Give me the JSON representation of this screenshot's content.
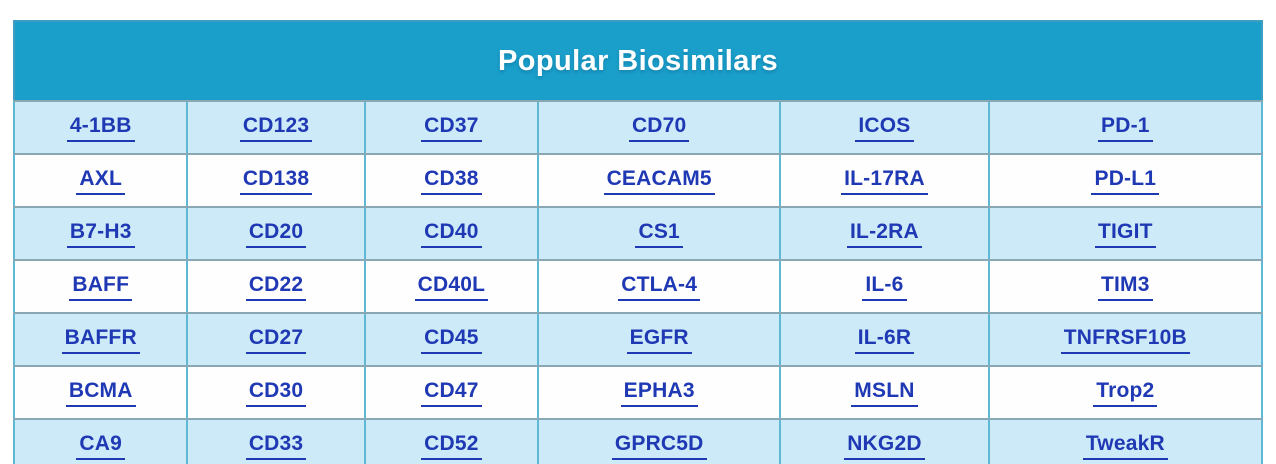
{
  "table": {
    "title": "Popular Biosimilars",
    "column_count": 6,
    "rows": [
      [
        "4-1BB",
        "CD123",
        "CD37",
        "CD70",
        "ICOS",
        "PD-1"
      ],
      [
        "AXL",
        "CD138",
        "CD38",
        "CEACAM5",
        "IL-17RA",
        "PD-L1"
      ],
      [
        "B7-H3",
        "CD20",
        "CD40",
        "CS1",
        "IL-2RA",
        "TIGIT"
      ],
      [
        "BAFF",
        "CD22",
        "CD40L",
        "CTLA-4",
        "IL-6",
        "TIM3"
      ],
      [
        "BAFFR",
        "CD27",
        "CD45",
        "EGFR",
        "IL-6R",
        "TNFRSF10B"
      ],
      [
        "BCMA",
        "CD30",
        "CD47",
        "EPHA3",
        "MSLN",
        "Trop2"
      ],
      [
        "CA9",
        "CD33",
        "CD52",
        "GPRC5D",
        "NKG2D",
        "TweakR"
      ]
    ],
    "colors": {
      "header_bg": "#1A9ECA",
      "header_text": "#FFFFFF",
      "stripe_row_bg": "#CDEAF8",
      "plain_row_bg": "#FEFEFE",
      "grid_vertical": "#5FB8D4",
      "grid_horizontal": "#8AA7B4",
      "outer_border": "#3F9DC2",
      "link_text": "#1F38B4"
    }
  }
}
